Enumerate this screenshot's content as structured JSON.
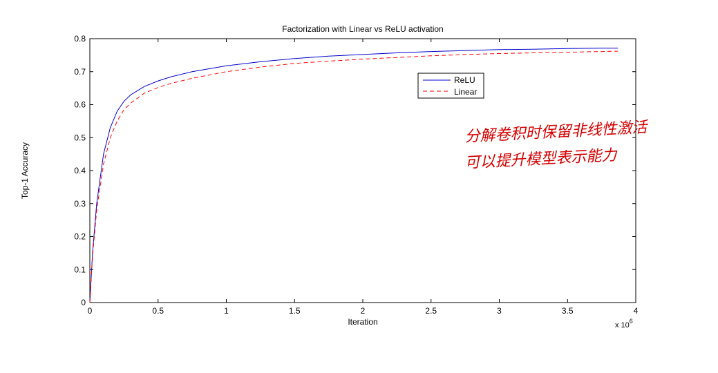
{
  "chart_data": {
    "type": "line",
    "title": "Factorization with Linear vs ReLU activation",
    "xlabel": "Iteration",
    "ylabel": "Top-1 Accuracy",
    "x_exponent_label": "x 10",
    "x_exponent_power": "6",
    "xlim": [
      0,
      4
    ],
    "ylim": [
      0,
      0.8
    ],
    "xticks": [
      0,
      0.5,
      1,
      1.5,
      2,
      2.5,
      3,
      3.5,
      4
    ],
    "xtick_labels": [
      "0",
      "0.5",
      "1",
      "1.5",
      "2",
      "2.5",
      "3",
      "3.5",
      "4"
    ],
    "yticks": [
      0,
      0.1,
      0.2,
      0.3,
      0.4,
      0.5,
      0.6,
      0.7,
      0.8
    ],
    "ytick_labels": [
      "0",
      "0.1",
      "0.2",
      "0.3",
      "0.4",
      "0.5",
      "0.6",
      "0.7",
      "0.8"
    ],
    "grid": false,
    "legend_position": "upper-right (inside plot)",
    "series": [
      {
        "name": "ReLU",
        "color": "#0000cc",
        "style": "solid",
        "x": [
          0,
          0.02,
          0.05,
          0.1,
          0.15,
          0.2,
          0.25,
          0.3,
          0.4,
          0.5,
          0.6,
          0.75,
          1.0,
          1.25,
          1.5,
          1.75,
          2.0,
          2.25,
          2.5,
          2.75,
          3.0,
          3.25,
          3.5,
          3.75,
          3.87
        ],
        "y": [
          0,
          0.15,
          0.3,
          0.45,
          0.53,
          0.58,
          0.61,
          0.63,
          0.655,
          0.672,
          0.685,
          0.7,
          0.718,
          0.73,
          0.74,
          0.747,
          0.752,
          0.757,
          0.761,
          0.764,
          0.767,
          0.768,
          0.77,
          0.771,
          0.771
        ]
      },
      {
        "name": "Linear",
        "color": "#ff0000",
        "style": "dashed",
        "x": [
          0,
          0.02,
          0.05,
          0.1,
          0.15,
          0.2,
          0.25,
          0.3,
          0.4,
          0.5,
          0.6,
          0.75,
          1.0,
          1.25,
          1.5,
          1.75,
          2.0,
          2.25,
          2.5,
          2.75,
          3.0,
          3.25,
          3.5,
          3.75,
          3.87
        ],
        "y": [
          0,
          0.14,
          0.28,
          0.42,
          0.5,
          0.55,
          0.585,
          0.605,
          0.635,
          0.652,
          0.665,
          0.68,
          0.7,
          0.714,
          0.725,
          0.732,
          0.738,
          0.743,
          0.748,
          0.752,
          0.755,
          0.757,
          0.759,
          0.761,
          0.762
        ]
      }
    ],
    "annotation": {
      "lines": [
        "分解卷积时保留非线性激活",
        "可以提升模型表示能力"
      ],
      "color": "#d40000"
    }
  }
}
